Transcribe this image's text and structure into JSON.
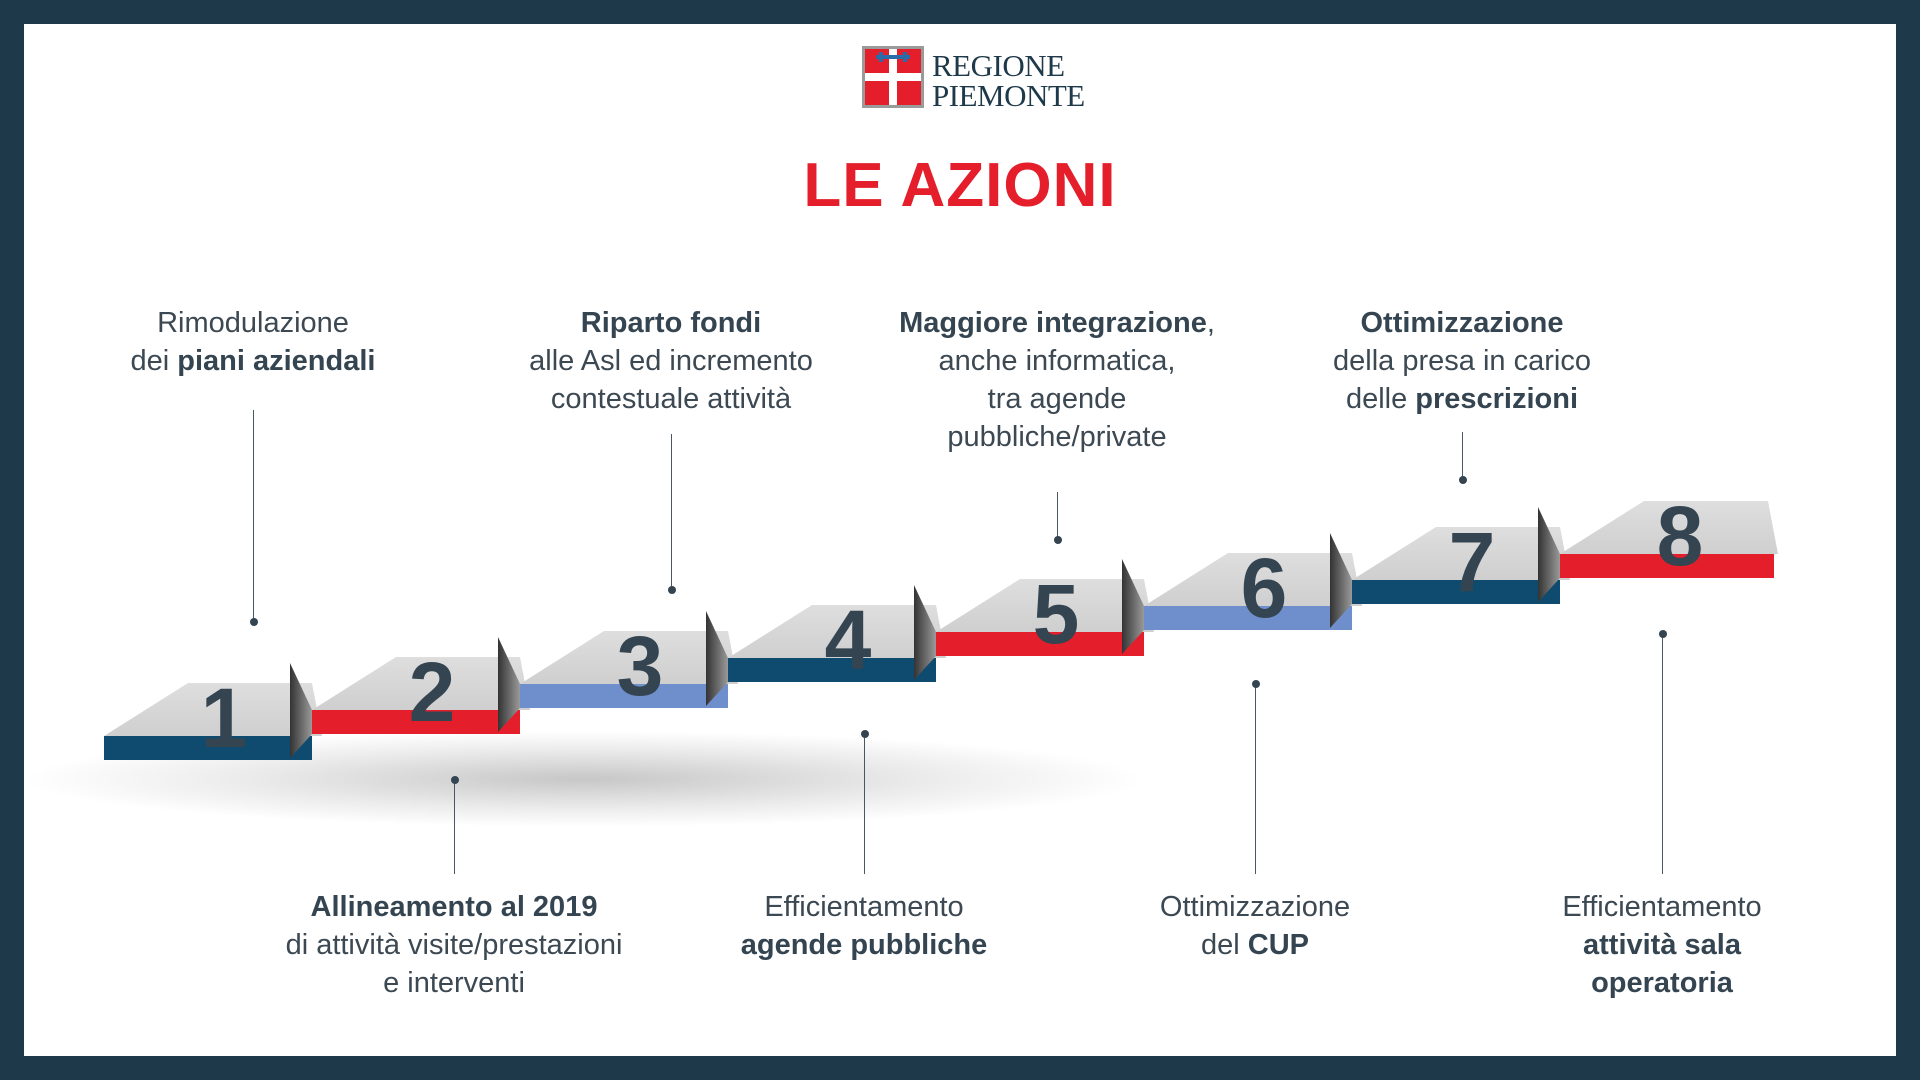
{
  "logo": {
    "line1": "REGIONE",
    "line2": "PIEMONTE",
    "colors": {
      "red": "#e41e2b",
      "blue": "#2a6ca8",
      "text": "#1e3a4a"
    }
  },
  "title": "LE AZIONI",
  "colors": {
    "frame": "#1e3a4a",
    "title": "#e41e2b",
    "step_top": "#d6d6d6",
    "dark_blue": "#0f4b6e",
    "red": "#e41e2b",
    "light_blue": "#6f8fcc",
    "number": "#344551",
    "text": "#3c4852"
  },
  "steps": [
    {
      "number": "1",
      "face_color": "dark_blue"
    },
    {
      "number": "2",
      "face_color": "red"
    },
    {
      "number": "3",
      "face_color": "light_blue"
    },
    {
      "number": "4",
      "face_color": "dark_blue"
    },
    {
      "number": "5",
      "face_color": "red"
    },
    {
      "number": "6",
      "face_color": "light_blue"
    },
    {
      "number": "7",
      "face_color": "dark_blue"
    },
    {
      "number": "8",
      "face_color": "red"
    }
  ],
  "actions": [
    {
      "step": "1",
      "lines": [
        {
          "pre": "Rimodulazione"
        },
        {
          "pre": "dei ",
          "bold": "piani aziendali"
        }
      ]
    },
    {
      "step": "2",
      "lines": [
        {
          "bold": "Allineamento al 2019"
        },
        {
          "pre": "di attività visite/prestazioni"
        },
        {
          "pre": "e interventi"
        }
      ]
    },
    {
      "step": "3",
      "lines": [
        {
          "bold": "Riparto fondi"
        },
        {
          "pre": "alle Asl ed incremento"
        },
        {
          "pre": "contestuale attività"
        }
      ]
    },
    {
      "step": "4",
      "lines": [
        {
          "pre": "Efficientamento"
        },
        {
          "bold": "agende pubbliche"
        }
      ]
    },
    {
      "step": "5",
      "lines": [
        {
          "bold": "Maggiore integrazione",
          "post": ","
        },
        {
          "pre": "anche informatica,"
        },
        {
          "pre": "tra agende"
        },
        {
          "pre": "pubbliche/private"
        }
      ]
    },
    {
      "step": "6",
      "lines": [
        {
          "pre": "Ottimizzazione"
        },
        {
          "pre": "del ",
          "bold": "CUP"
        }
      ]
    },
    {
      "step": "7",
      "lines": [
        {
          "bold": "Ottimizzazione"
        },
        {
          "pre": "della presa in carico"
        },
        {
          "pre": "delle ",
          "bold": "prescrizioni"
        }
      ]
    },
    {
      "step": "8",
      "lines": [
        {
          "pre": "Efficientamento"
        },
        {
          "bold": "attività sala"
        },
        {
          "bold": "operatoria"
        }
      ]
    }
  ]
}
